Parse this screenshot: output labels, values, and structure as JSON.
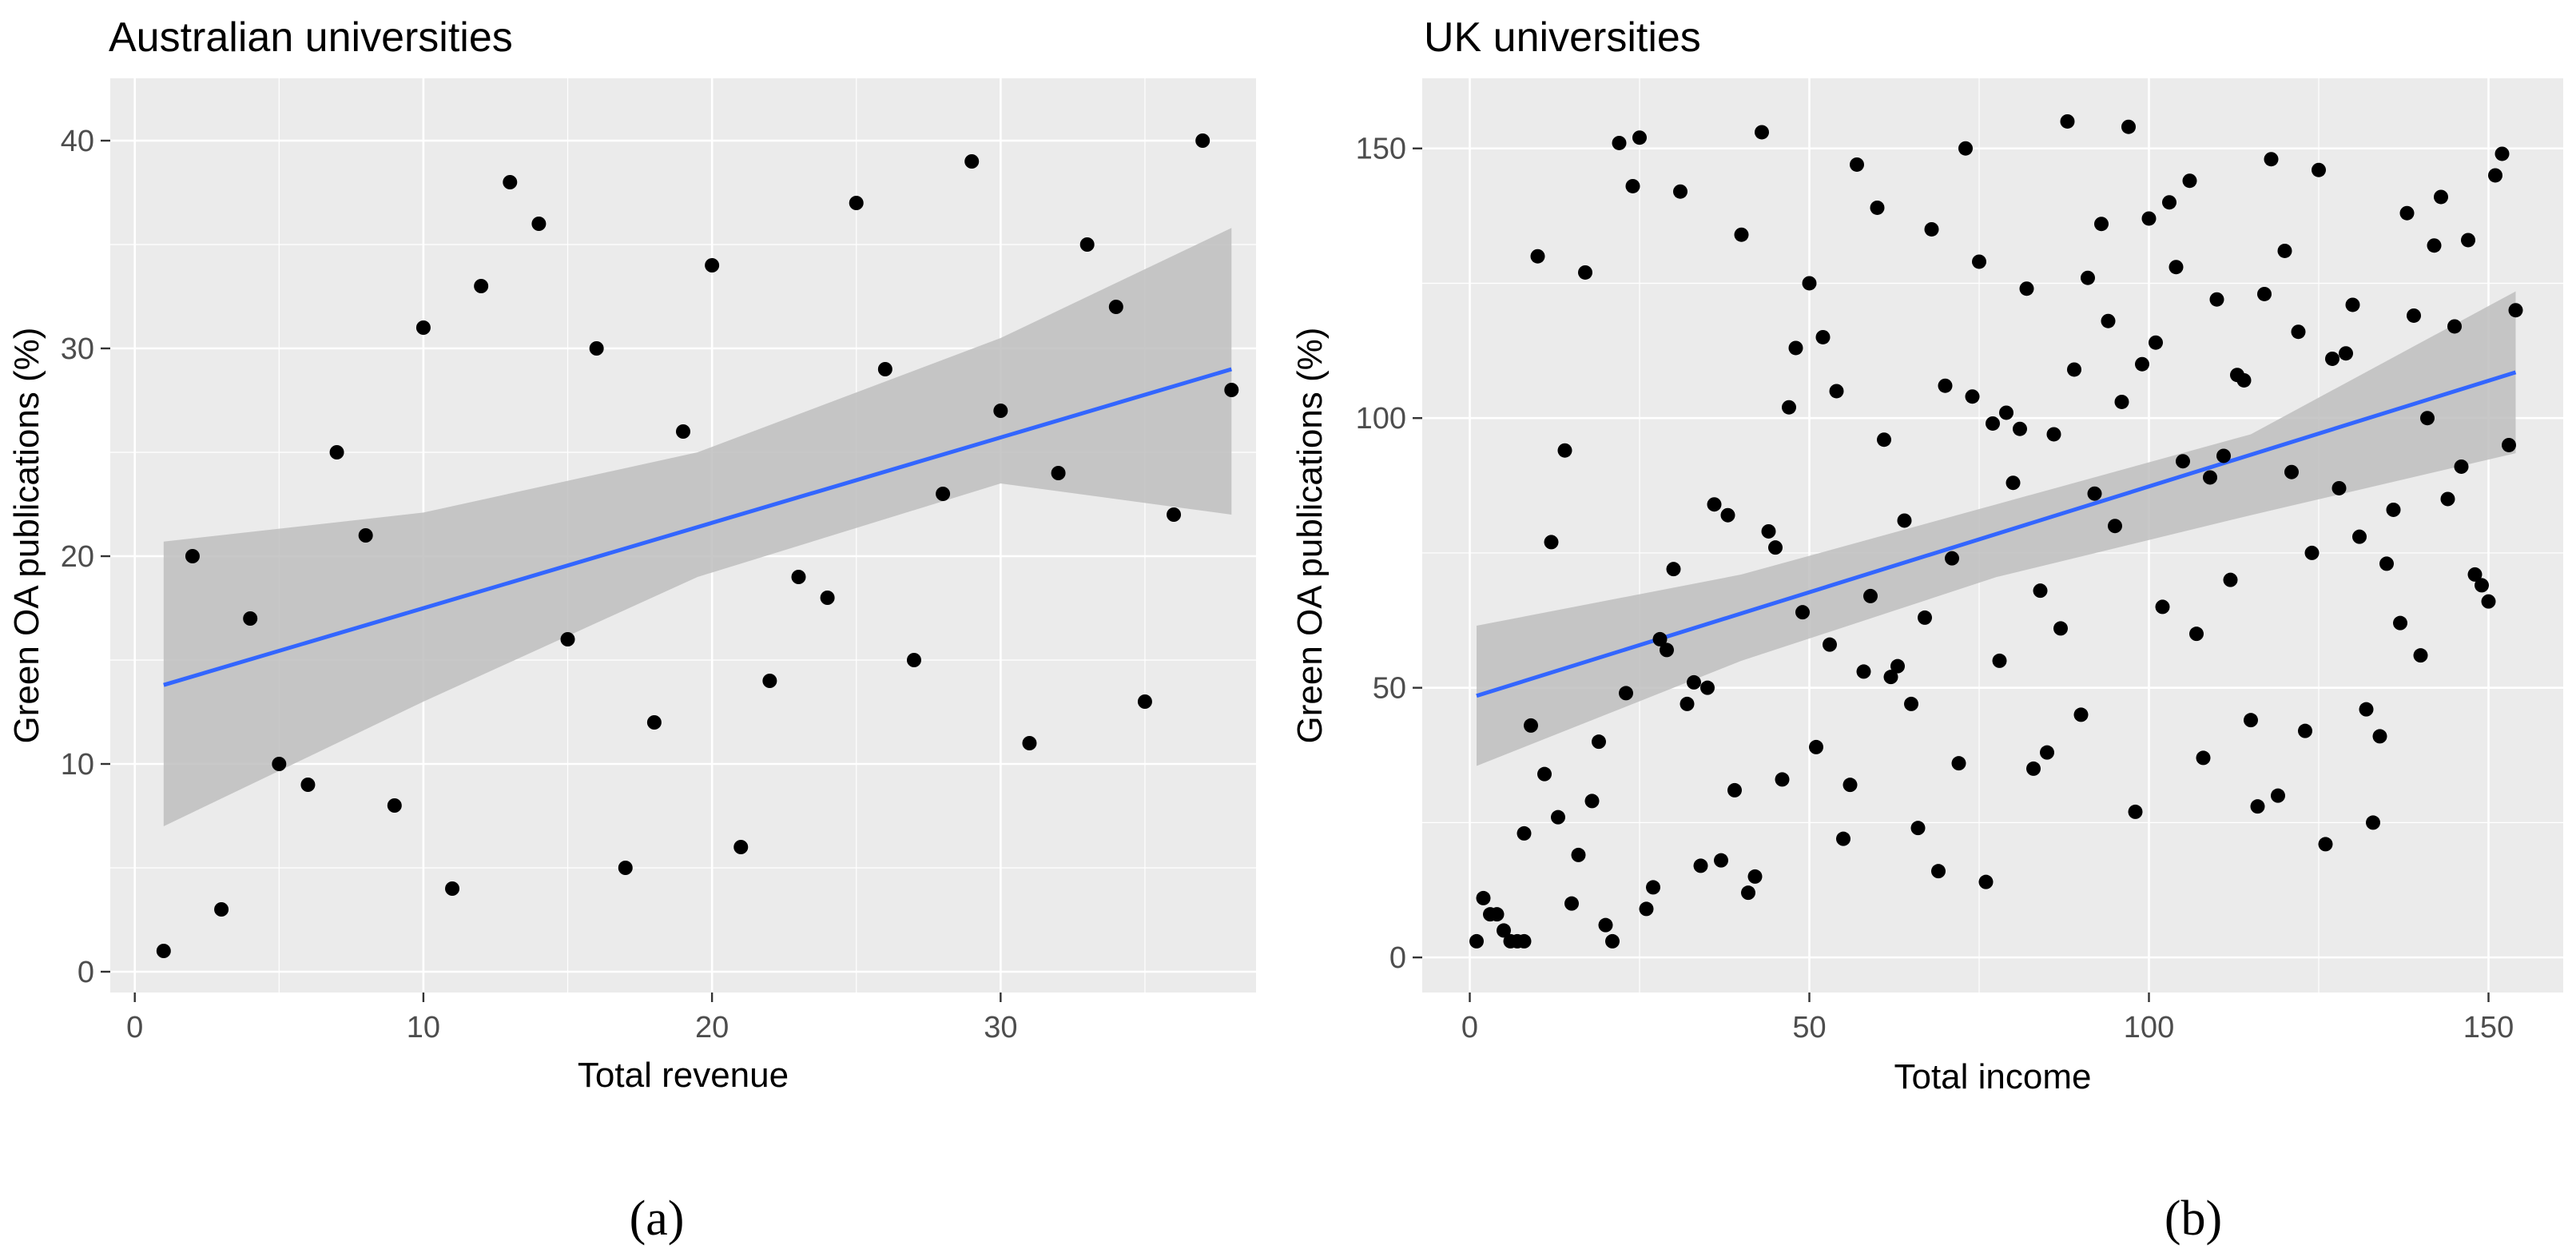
{
  "chart_data": [
    {
      "type": "scatter",
      "title": "Australian universities",
      "xlabel": "Total revenue",
      "ylabel": "Green OA publications (%)",
      "xlim": [
        -0.85,
        38.85
      ],
      "ylim": [
        -1.0,
        43.0
      ],
      "xticks": [
        0,
        10,
        20,
        30
      ],
      "yticks": [
        0,
        10,
        20,
        30,
        40
      ],
      "caption": "(a)",
      "colors": {
        "panel": "#ebebeb",
        "points": "#000000",
        "fit": "#3366ff",
        "band": "#bebebe"
      },
      "points": {
        "x": [
          1,
          2,
          3,
          4,
          5,
          6,
          7,
          8,
          9,
          10,
          11,
          12,
          13,
          14,
          15,
          16,
          17,
          18,
          19,
          20,
          21,
          22,
          23,
          24,
          25,
          26,
          27,
          28,
          29,
          30,
          31,
          32,
          33,
          34,
          35,
          36,
          37,
          38
        ],
        "y": [
          1,
          20,
          3,
          17,
          10,
          9,
          25,
          21,
          8,
          31,
          4,
          33,
          38,
          36,
          16,
          30,
          5,
          12,
          26,
          34,
          6,
          14,
          19,
          18,
          37,
          29,
          15,
          23,
          39,
          27,
          11,
          24,
          35,
          32,
          13,
          22,
          40,
          28
        ]
      },
      "fit": {
        "x": [
          1,
          38
        ],
        "y": [
          13.8,
          29.0
        ]
      },
      "band": {
        "x": [
          1,
          10,
          19.5,
          30,
          38
        ],
        "lower": [
          7.0,
          13.0,
          19.0,
          23.5,
          22.0
        ],
        "upper": [
          20.7,
          22.1,
          25.0,
          30.5,
          35.8
        ]
      }
    },
    {
      "type": "scatter",
      "title": "UK universities",
      "xlabel": "Total income",
      "ylabel": "Green OA publications (%)",
      "xlim": [
        -7.0,
        161.0
      ],
      "ylim": [
        -6.5,
        163.0
      ],
      "xticks": [
        0,
        50,
        100,
        150
      ],
      "yticks": [
        0,
        50,
        100,
        150
      ],
      "caption": "(b)",
      "colors": {
        "panel": "#ebebeb",
        "points": "#000000",
        "fit": "#3366ff",
        "band": "#bebebe"
      },
      "points": {
        "x": [
          1,
          2,
          3,
          4,
          5,
          6,
          7,
          8,
          8,
          9,
          10,
          11,
          12,
          13,
          14,
          15,
          16,
          17,
          18,
          19,
          20,
          21,
          22,
          23,
          24,
          25,
          26,
          27,
          28,
          29,
          30,
          31,
          32,
          33,
          34,
          35,
          36,
          37,
          38,
          39,
          40,
          41,
          42,
          43,
          44,
          45,
          46,
          47,
          48,
          49,
          50,
          51,
          52,
          53,
          54,
          55,
          56,
          57,
          58,
          59,
          60,
          61,
          62,
          63,
          64,
          65,
          66,
          67,
          68,
          69,
          70,
          71,
          72,
          73,
          74,
          75,
          76,
          77,
          78,
          79,
          80,
          81,
          82,
          83,
          84,
          85,
          86,
          87,
          88,
          89,
          90,
          91,
          92,
          93,
          94,
          95,
          96,
          97,
          98,
          99,
          100,
          101,
          102,
          103,
          104,
          105,
          106,
          107,
          108,
          109,
          110,
          111,
          112,
          113,
          114,
          115,
          116,
          117,
          118,
          119,
          120,
          121,
          122,
          123,
          124,
          125,
          126,
          127,
          128,
          129,
          130,
          131,
          132,
          133,
          134,
          135,
          136,
          137,
          138,
          139,
          140,
          141,
          142,
          143,
          144,
          145,
          146,
          147,
          148,
          149,
          150,
          151,
          152,
          153,
          154
        ],
        "y": [
          3,
          11,
          8,
          8,
          5,
          3,
          3,
          23,
          3,
          43,
          130,
          34,
          77,
          26,
          94,
          10,
          19,
          127,
          29,
          40,
          6,
          3,
          151,
          49,
          143,
          152,
          9,
          13,
          59,
          57,
          72,
          142,
          47,
          51,
          17,
          50,
          84,
          18,
          82,
          31,
          134,
          12,
          15,
          153,
          79,
          76,
          33,
          102,
          113,
          64,
          125,
          39,
          115,
          58,
          105,
          22,
          32,
          147,
          53,
          67,
          139,
          96,
          52,
          54,
          81,
          47,
          24,
          63,
          135,
          16,
          106,
          74,
          36,
          150,
          104,
          129,
          14,
          99,
          55,
          101,
          88,
          98,
          124,
          35,
          68,
          38,
          97,
          61,
          155,
          109,
          45,
          126,
          86,
          136,
          118,
          80,
          103,
          154,
          27,
          110,
          137,
          114,
          65,
          140,
          128,
          92,
          144,
          60,
          37,
          89,
          122,
          93,
          70,
          108,
          107,
          44,
          28,
          123,
          148,
          30,
          131,
          90,
          116,
          42,
          75,
          146,
          21,
          111,
          87,
          112,
          121,
          78,
          46,
          25,
          41,
          73,
          83,
          62,
          138,
          119,
          56,
          100,
          132,
          141,
          85,
          117,
          91,
          133,
          71,
          69,
          66,
          145,
          149,
          95,
          120
        ]
      },
      "fit": {
        "x": [
          1,
          154
        ],
        "y": [
          48.5,
          108.5
        ]
      },
      "band": {
        "x": [
          1,
          40,
          77.5,
          115,
          154
        ],
        "lower": [
          35.5,
          55.0,
          70.5,
          82.0,
          93.5
        ],
        "upper": [
          61.5,
          71.0,
          84.0,
          97.0,
          123.5
        ]
      }
    }
  ]
}
